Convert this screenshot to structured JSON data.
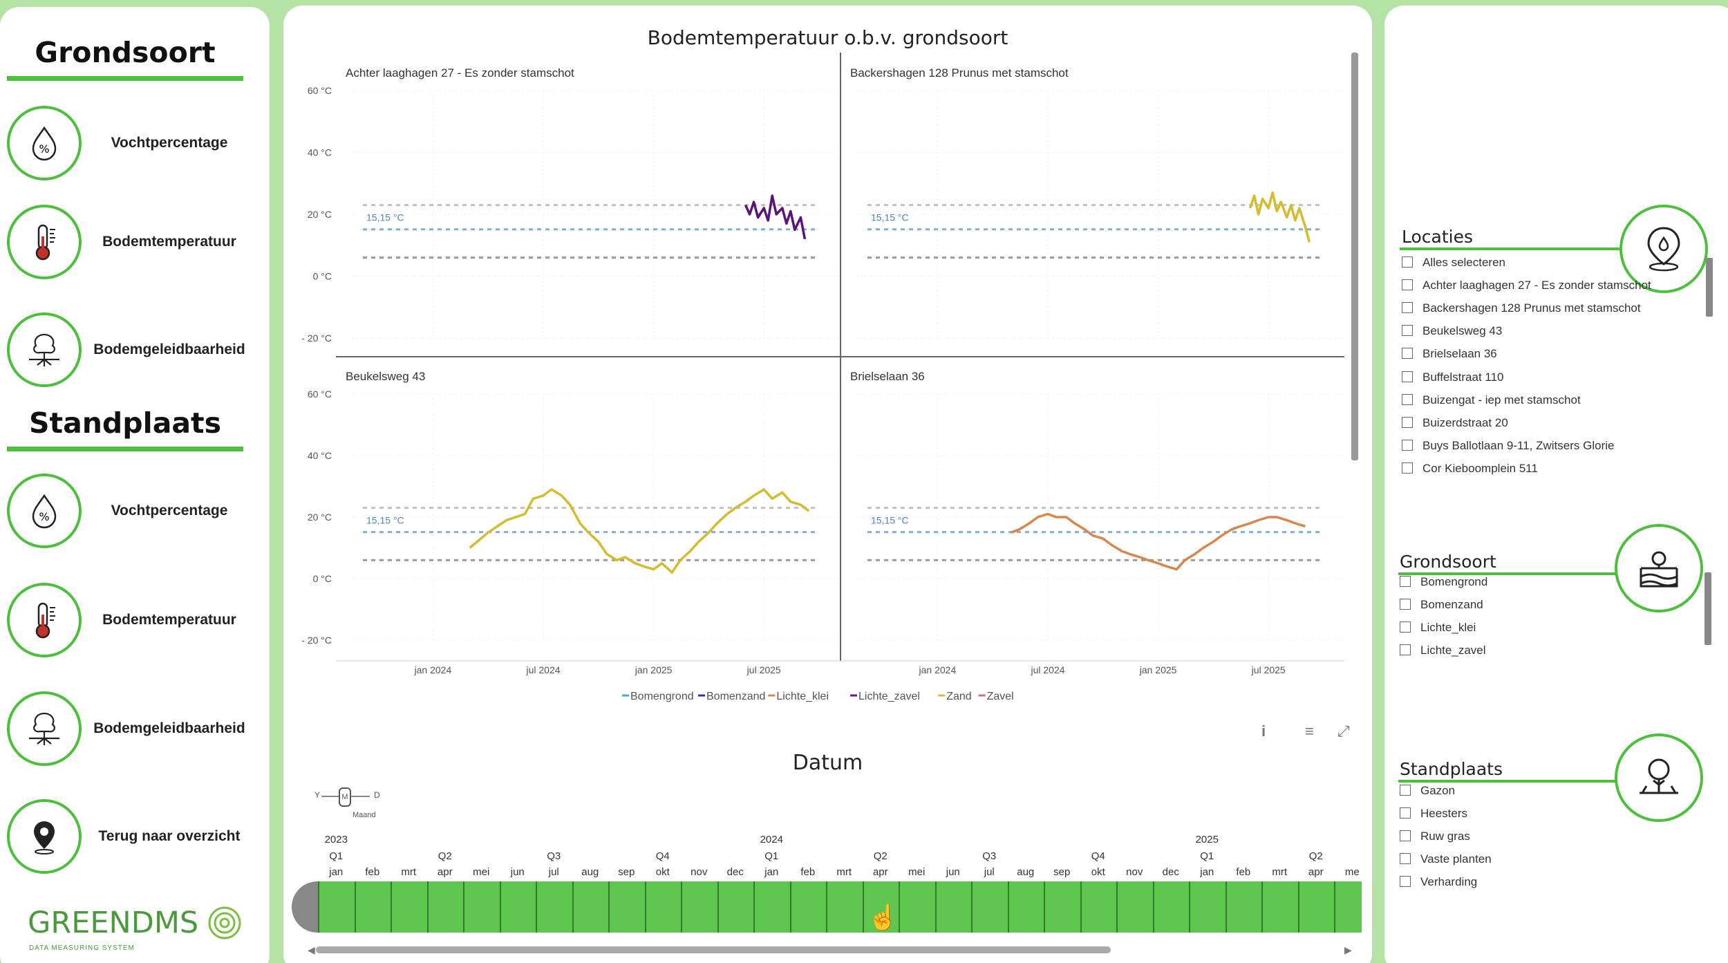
{
  "nav": {
    "grondsoort_title": "Grondsoort",
    "standplaats_title": "Standplaats",
    "grondsoort_items": [
      {
        "label": "Vochtpercentage",
        "icon": "moisture-percent-icon"
      },
      {
        "label": "Bodemtemperatuur",
        "icon": "thermometer-icon"
      },
      {
        "label": "Bodemgeleidbaarheid",
        "icon": "tree-roots-icon"
      }
    ],
    "standplaats_items": [
      {
        "label": "Vochtpercentage",
        "icon": "moisture-percent-icon"
      },
      {
        "label": "Bodemtemperatuur",
        "icon": "thermometer-icon"
      },
      {
        "label": "Bodemgeleidbaarheid",
        "icon": "tree-roots-icon"
      },
      {
        "label": "Terug naar overzicht",
        "icon": "location-pin-icon"
      }
    ],
    "logo_text": "GREENDMS",
    "logo_sub": "DATA MEASURING SYSTEM"
  },
  "chart_data": {
    "type": "line",
    "title": "Bodemtemperatuur o.b.v. grondsoort",
    "y_ticks": [
      "60 °C",
      "40 °C",
      "20 °C",
      "0 °C",
      "- 20 °C"
    ],
    "ylim": [
      -20,
      60
    ],
    "x_ticks": [
      "jan 2024",
      "jul 2024",
      "jan 2025",
      "jul 2025"
    ],
    "xlim": [
      "2023-09",
      "2025-10"
    ],
    "reference_line_label": "15,15 °C",
    "reference_lines": [
      {
        "label": "15,15 °C",
        "value": 15.15,
        "color": "#7fb0d8"
      },
      {
        "value": 23,
        "color": "#c0c0c0"
      },
      {
        "value": 6,
        "color": "#999999"
      }
    ],
    "legend": [
      {
        "name": "Bomengrond",
        "color": "#4aa3df"
      },
      {
        "name": "Bomenzand",
        "color": "#3a2f8f"
      },
      {
        "name": "Lichte_klei",
        "color": "#d9864a"
      },
      {
        "name": "Lichte_zavel",
        "color": "#6a1b8a"
      },
      {
        "name": "Zand",
        "color": "#d4bc2c"
      },
      {
        "name": "Zavel",
        "color": "#c96b9e"
      }
    ],
    "panels": [
      {
        "title": "Achter laaghagen 27 - Es zonder stamschot",
        "series": "Lichte_zavel",
        "color": "#5b137a",
        "points": [
          [
            "2025-06-01",
            23
          ],
          [
            "2025-06-08",
            20
          ],
          [
            "2025-06-15",
            24
          ],
          [
            "2025-06-22",
            19
          ],
          [
            "2025-07-01",
            22
          ],
          [
            "2025-07-08",
            18
          ],
          [
            "2025-07-15",
            26
          ],
          [
            "2025-07-22",
            20
          ],
          [
            "2025-08-01",
            22
          ],
          [
            "2025-08-08",
            17
          ],
          [
            "2025-08-15",
            21
          ],
          [
            "2025-08-22",
            15
          ],
          [
            "2025-09-01",
            19
          ],
          [
            "2025-09-08",
            12
          ]
        ]
      },
      {
        "title": "Backershagen 128 Prunus met stamschot",
        "series": "Zand",
        "color": "#d4bc2c",
        "points": [
          [
            "2025-06-01",
            22
          ],
          [
            "2025-06-08",
            26
          ],
          [
            "2025-06-15",
            20
          ],
          [
            "2025-06-22",
            25
          ],
          [
            "2025-07-01",
            22
          ],
          [
            "2025-07-08",
            27
          ],
          [
            "2025-07-15",
            21
          ],
          [
            "2025-07-22",
            24
          ],
          [
            "2025-08-01",
            19
          ],
          [
            "2025-08-08",
            23
          ],
          [
            "2025-08-15",
            18
          ],
          [
            "2025-08-22",
            22
          ],
          [
            "2025-09-01",
            16
          ],
          [
            "2025-09-08",
            11
          ]
        ]
      },
      {
        "title": "Beukelsweg 43",
        "series": "Zand",
        "color": "#d4bc2c",
        "points": [
          [
            "2024-03-01",
            10
          ],
          [
            "2024-04-01",
            15
          ],
          [
            "2024-05-01",
            19
          ],
          [
            "2024-06-01",
            21
          ],
          [
            "2024-06-15",
            26
          ],
          [
            "2024-07-01",
            27
          ],
          [
            "2024-07-15",
            29
          ],
          [
            "2024-08-01",
            27
          ],
          [
            "2024-08-15",
            24
          ],
          [
            "2024-09-01",
            18
          ],
          [
            "2024-09-15",
            15
          ],
          [
            "2024-10-01",
            12
          ],
          [
            "2024-10-15",
            8
          ],
          [
            "2024-11-01",
            6
          ],
          [
            "2024-11-15",
            7
          ],
          [
            "2024-12-01",
            5
          ],
          [
            "2024-12-15",
            4
          ],
          [
            "2025-01-01",
            3
          ],
          [
            "2025-01-15",
            5
          ],
          [
            "2025-02-01",
            2
          ],
          [
            "2025-02-15",
            6
          ],
          [
            "2025-03-01",
            9
          ],
          [
            "2025-03-15",
            12
          ],
          [
            "2025-04-01",
            15
          ],
          [
            "2025-04-15",
            18
          ],
          [
            "2025-05-01",
            21
          ],
          [
            "2025-05-15",
            23
          ],
          [
            "2025-06-01",
            25
          ],
          [
            "2025-06-15",
            27
          ],
          [
            "2025-07-01",
            29
          ],
          [
            "2025-07-15",
            26
          ],
          [
            "2025-08-01",
            28
          ],
          [
            "2025-08-15",
            25
          ],
          [
            "2025-09-01",
            24
          ],
          [
            "2025-09-15",
            22
          ]
        ]
      },
      {
        "title": "Brielselaan 36",
        "series": "Lichte_klei",
        "color": "#d9864a",
        "points": [
          [
            "2024-05-01",
            15
          ],
          [
            "2024-05-15",
            16
          ],
          [
            "2024-06-01",
            18
          ],
          [
            "2024-06-15",
            20
          ],
          [
            "2024-07-01",
            21
          ],
          [
            "2024-07-15",
            20
          ],
          [
            "2024-08-01",
            20
          ],
          [
            "2024-08-15",
            18
          ],
          [
            "2024-09-01",
            16
          ],
          [
            "2024-09-15",
            14
          ],
          [
            "2024-10-01",
            13
          ],
          [
            "2024-10-15",
            11
          ],
          [
            "2024-11-01",
            9
          ],
          [
            "2024-11-15",
            8
          ],
          [
            "2024-12-01",
            7
          ],
          [
            "2024-12-15",
            6
          ],
          [
            "2025-01-01",
            5
          ],
          [
            "2025-01-15",
            4
          ],
          [
            "2025-02-01",
            3
          ],
          [
            "2025-02-15",
            6
          ],
          [
            "2025-03-01",
            8
          ],
          [
            "2025-03-15",
            10
          ],
          [
            "2025-04-01",
            12
          ],
          [
            "2025-04-15",
            14
          ],
          [
            "2025-05-01",
            16
          ],
          [
            "2025-05-15",
            17
          ],
          [
            "2025-06-01",
            18
          ],
          [
            "2025-06-15",
            19
          ],
          [
            "2025-07-01",
            20
          ],
          [
            "2025-07-15",
            20
          ],
          [
            "2025-08-01",
            19
          ],
          [
            "2025-08-15",
            18
          ],
          [
            "2025-09-01",
            17
          ]
        ]
      }
    ]
  },
  "slicer_date": {
    "title": "Datum",
    "granularity": [
      "Y",
      "M",
      "D"
    ],
    "granularity_active": "Maand",
    "selected_granularity_short": "M",
    "years": [
      {
        "label": "2023",
        "month_index": 0
      },
      {
        "label": "2024",
        "month_index": 12
      },
      {
        "label": "2025",
        "month_index": 24
      }
    ],
    "quarters": [
      "Q1",
      "Q2",
      "Q3",
      "Q4",
      "Q1",
      "Q2",
      "Q3",
      "Q4",
      "Q1",
      "Q2"
    ],
    "months": [
      "jan",
      "feb",
      "mrt",
      "apr",
      "mei",
      "jun",
      "jul",
      "aug",
      "sep",
      "okt",
      "nov",
      "dec",
      "jan",
      "feb",
      "mrt",
      "apr",
      "mei",
      "jun",
      "jul",
      "aug",
      "sep",
      "okt",
      "nov",
      "dec",
      "jan",
      "feb",
      "mrt",
      "apr",
      "me"
    ]
  },
  "slicers": {
    "locaties": {
      "title": "Locaties",
      "icon": "location-drop-icon",
      "items": [
        "Alles selecteren",
        "Achter laaghagen 27 - Es zonder stamschot",
        "Backershagen 128 Prunus met stamschot",
        "Beukelsweg 43",
        "Brielselaan 36",
        "Buffelstraat 110",
        "Buizengat - iep met stamschot",
        "Buizerdstraat 20",
        "Buys Ballotlaan 9-11, Zwitsers Glorie",
        "Cor Kieboomplein 511"
      ]
    },
    "grondsoort": {
      "title": "Grondsoort",
      "icon": "soil-layers-icon",
      "items": [
        "Bomengrond",
        "Bomenzand",
        "Lichte_klei",
        "Lichte_zavel"
      ]
    },
    "standplaats": {
      "title": "Standplaats",
      "icon": "tree-site-icon",
      "items": [
        "Gazon",
        "Heesters",
        "Ruw gras",
        "Vaste planten",
        "Verharding"
      ]
    }
  }
}
